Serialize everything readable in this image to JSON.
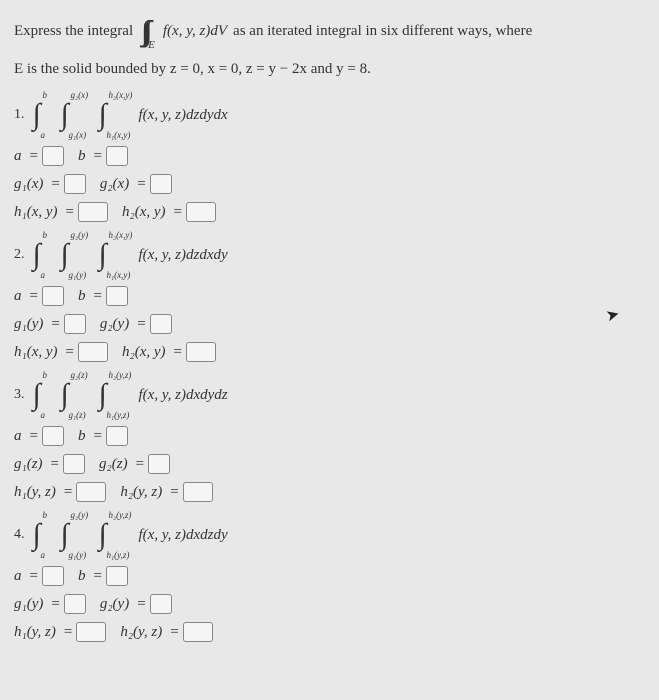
{
  "intro": {
    "before": "Express the integral",
    "triple_int": "∫∫∫",
    "sub_region": "E",
    "integrand": "f(x, y, z)dV",
    "after": "as an iterated integral in six different ways, where"
  },
  "bounds": "E is the solid bounded by z = 0, x = 0, z = y − 2x and y = 8.",
  "items": [
    {
      "num": "1.",
      "limits": [
        [
          "a",
          "b"
        ],
        [
          "g₁(x)",
          "g₂(x)"
        ],
        [
          "h₁(x,y)",
          "h₂(x,y)"
        ]
      ],
      "integrand": "f(x, y, z)dzdydx",
      "rows": [
        [
          [
            "a",
            ""
          ],
          [
            "b",
            ""
          ]
        ],
        [
          [
            "g₁(x)",
            ""
          ],
          [
            "g₂(x)",
            ""
          ]
        ],
        [
          [
            "h₁(x, y)",
            ""
          ],
          [
            "h₂(x, y)",
            ""
          ]
        ]
      ]
    },
    {
      "num": "2.",
      "limits": [
        [
          "a",
          "b"
        ],
        [
          "g₁(y)",
          "g₂(y)"
        ],
        [
          "h₁(x,y)",
          "h₂(x,y)"
        ]
      ],
      "integrand": "f(x, y, z)dzdxdy",
      "rows": [
        [
          [
            "a",
            ""
          ],
          [
            "b",
            ""
          ]
        ],
        [
          [
            "g₁(y)",
            ""
          ],
          [
            "g₂(y)",
            ""
          ]
        ],
        [
          [
            "h₁(x, y)",
            ""
          ],
          [
            "h₂(x, y)",
            ""
          ]
        ]
      ]
    },
    {
      "num": "3.",
      "limits": [
        [
          "a",
          "b"
        ],
        [
          "g₁(z)",
          "g₂(z)"
        ],
        [
          "h₁(y,z)",
          "h₂(y,z)"
        ]
      ],
      "integrand": "f(x, y, z)dxdydz",
      "rows": [
        [
          [
            "a",
            ""
          ],
          [
            "b",
            ""
          ]
        ],
        [
          [
            "g₁(z)",
            ""
          ],
          [
            "g₂(z)",
            ""
          ]
        ],
        [
          [
            "h₁(y, z)",
            ""
          ],
          [
            "h₂(y, z)",
            ""
          ]
        ]
      ]
    },
    {
      "num": "4.",
      "limits": [
        [
          "a",
          "b"
        ],
        [
          "g₁(y)",
          "g₂(y)"
        ],
        [
          "h₁(y,z)",
          "h₂(y,z)"
        ]
      ],
      "integrand": "f(x, y, z)dxdzdy",
      "rows": [
        [
          [
            "a",
            ""
          ],
          [
            "b",
            ""
          ]
        ],
        [
          [
            "g₁(y)",
            ""
          ],
          [
            "g₂(y)",
            ""
          ]
        ],
        [
          [
            "h₁(y, z)",
            ""
          ],
          [
            "h₂(y, z)",
            ""
          ]
        ]
      ]
    }
  ],
  "cursor": "➤"
}
